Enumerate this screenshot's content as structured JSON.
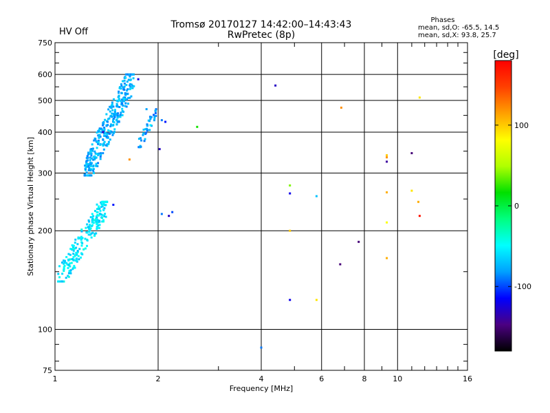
{
  "header": {
    "title_line1": "Tromsø 20170127 14:42:00–14:43:43",
    "title_line2": "RwPretec (8p)",
    "status": "HV Off",
    "status_color": "#cc0000",
    "phases_title": "Phases",
    "phases_line1": "mean, sd,O:  -65.5, 14.5",
    "phases_line2": "mean, sd,X:  93.8, 25.7"
  },
  "colorbar": {
    "unit_label": "[deg]",
    "range": [
      -180,
      180
    ],
    "tick_labels": [
      "100",
      "0",
      "-100"
    ],
    "tick_values": [
      100,
      0,
      -100
    ],
    "colormap": [
      "#000000",
      "#4b0082",
      "#0000ff",
      "#00a0ff",
      "#00ffff",
      "#00ff80",
      "#00e000",
      "#b0ff00",
      "#ffff00",
      "#ffa000",
      "#ff4000",
      "#ff0000"
    ]
  },
  "chart_data": {
    "type": "scatter",
    "xlabel": "Frequency [MHz]",
    "ylabel": "Stationary phase Virtual Height [km]",
    "x_scale": "log",
    "y_scale": "log",
    "xlim": [
      1,
      16
    ],
    "ylim": [
      75,
      750
    ],
    "x_ticks": [
      1,
      2,
      4,
      6,
      8,
      10,
      16
    ],
    "x_tick_labels": [
      "1",
      "2",
      "4",
      "6",
      "8",
      "10",
      "16"
    ],
    "y_ticks": [
      75,
      100,
      200,
      300,
      400,
      500,
      600,
      750
    ],
    "y_tick_labels": [
      "75",
      "100",
      "200",
      "300",
      "400",
      "500",
      "600",
      "750"
    ],
    "grid": true,
    "clusters": [
      {
        "x_range": [
          1.02,
          1.42
        ],
        "y_range": [
          140,
          245
        ],
        "phase_range": [
          -75,
          -40
        ],
        "count": 230
      },
      {
        "x_range": [
          1.22,
          1.7
        ],
        "y_range": [
          295,
          600
        ],
        "phase_range": [
          -90,
          -60
        ],
        "count": 320
      },
      {
        "x_range": [
          1.75,
          1.98
        ],
        "y_range": [
          360,
          470
        ],
        "phase_range": [
          -95,
          -65
        ],
        "count": 40
      }
    ],
    "points": [
      {
        "x": 1.75,
        "y": 580,
        "phase": -120
      },
      {
        "x": 1.85,
        "y": 470,
        "phase": -80
      },
      {
        "x": 1.9,
        "y": 420,
        "phase": -50
      },
      {
        "x": 2.05,
        "y": 435,
        "phase": -90
      },
      {
        "x": 2.1,
        "y": 430,
        "phase": -110
      },
      {
        "x": 2.6,
        "y": 415,
        "phase": 20
      },
      {
        "x": 2.02,
        "y": 355,
        "phase": -130
      },
      {
        "x": 1.65,
        "y": 330,
        "phase": 120
      },
      {
        "x": 2.05,
        "y": 225,
        "phase": -90
      },
      {
        "x": 2.15,
        "y": 222,
        "phase": -130
      },
      {
        "x": 2.2,
        "y": 228,
        "phase": -100
      },
      {
        "x": 1.38,
        "y": 400,
        "phase": -130
      },
      {
        "x": 1.48,
        "y": 240,
        "phase": -110
      },
      {
        "x": 4.4,
        "y": 555,
        "phase": -130
      },
      {
        "x": 6.85,
        "y": 475,
        "phase": 120
      },
      {
        "x": 4.85,
        "y": 275,
        "phase": 40
      },
      {
        "x": 4.85,
        "y": 260,
        "phase": -120
      },
      {
        "x": 5.8,
        "y": 255,
        "phase": -70
      },
      {
        "x": 4.85,
        "y": 200,
        "phase": 100
      },
      {
        "x": 7.7,
        "y": 185,
        "phase": -150
      },
      {
        "x": 6.8,
        "y": 158,
        "phase": -150
      },
      {
        "x": 4.85,
        "y": 123,
        "phase": -120
      },
      {
        "x": 5.8,
        "y": 123,
        "phase": 90
      },
      {
        "x": 4.0,
        "y": 88,
        "phase": -90
      },
      {
        "x": 9.3,
        "y": 340,
        "phase": 100
      },
      {
        "x": 9.3,
        "y": 335,
        "phase": 120
      },
      {
        "x": 9.3,
        "y": 325,
        "phase": -140
      },
      {
        "x": 9.3,
        "y": 262,
        "phase": 110
      },
      {
        "x": 9.3,
        "y": 212,
        "phase": 80
      },
      {
        "x": 9.3,
        "y": 165,
        "phase": 110
      },
      {
        "x": 11.0,
        "y": 345,
        "phase": -150
      },
      {
        "x": 11.0,
        "y": 265,
        "phase": 90
      },
      {
        "x": 11.5,
        "y": 245,
        "phase": 110
      },
      {
        "x": 11.6,
        "y": 222,
        "phase": 170
      },
      {
        "x": 11.6,
        "y": 510,
        "phase": 90
      }
    ]
  }
}
